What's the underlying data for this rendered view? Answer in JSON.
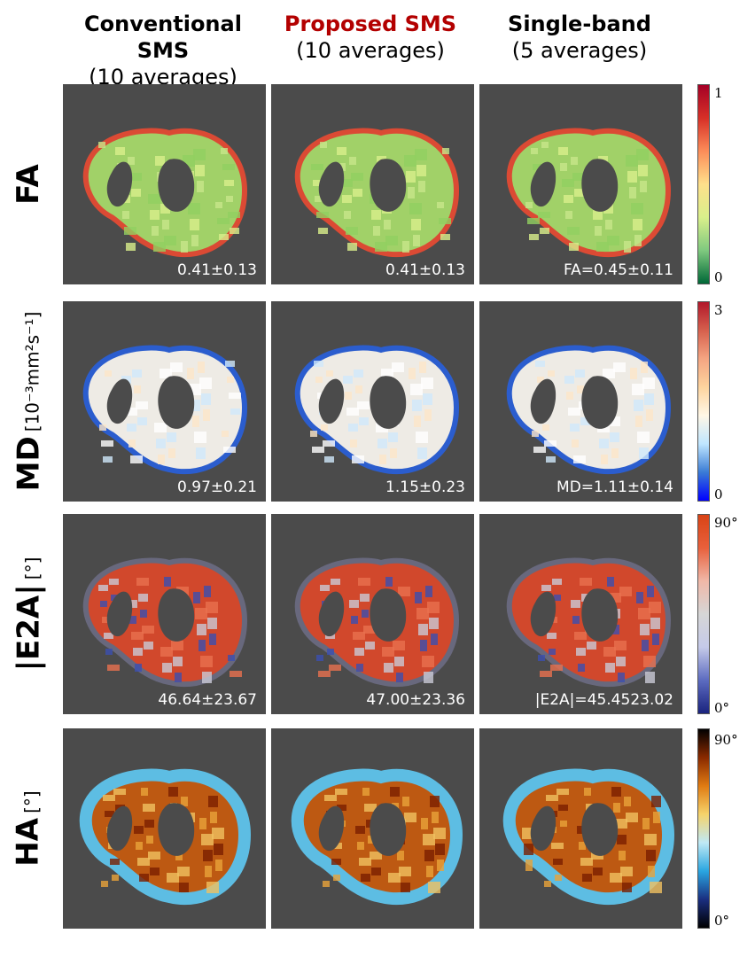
{
  "columns": [
    {
      "title": "Conventional SMS",
      "subtitle": "(10 averages)",
      "title_color": "#000000"
    },
    {
      "title": "Proposed SMS",
      "subtitle": "(10 averages)",
      "title_color": "#b30000"
    },
    {
      "title": "Single-band",
      "subtitle": "(5 averages)",
      "title_color": "#000000"
    }
  ],
  "rows": [
    {
      "label": "FA",
      "unit": "",
      "stats": [
        "0.41±0.13",
        "0.41±0.13",
        "FA=0.45±0.11"
      ],
      "colorbar": {
        "max": "1",
        "min": "0",
        "colors": [
          "#006837",
          "#7fc97f",
          "#d9ef8b",
          "#fee08b",
          "#fc8d59",
          "#d73027",
          "#a50026"
        ]
      },
      "heart_colors": [
        "#a6d96a",
        "#c8e68a",
        "#d9ef8b",
        "#91cf60"
      ],
      "rim_color": "#e34a33"
    },
    {
      "label": "MD",
      "unit": "[10⁻³mm²s⁻¹]",
      "stats": [
        "0.97±0.21",
        "1.15±0.23",
        "MD=1.11±0.14"
      ],
      "colorbar": {
        "max": "3",
        "min": "0",
        "colors": [
          "#0000ff",
          "#3a7bd5",
          "#bfe6ff",
          "#fff7e6",
          "#fdd49e",
          "#f4a582",
          "#d6604d",
          "#b2182b"
        ]
      },
      "heart_colors": [
        "#f7f4ee",
        "#fde6c8",
        "#cfe8fb",
        "#ffffff"
      ],
      "rim_color": "#2a5fd6"
    },
    {
      "label": "|E2A|",
      "unit": "[°]",
      "stats": [
        "46.64±23.67",
        "47.00±23.36",
        "|E2A|=45.4523.02"
      ],
      "colorbar": {
        "max": "90°",
        "min": "0°",
        "colors": [
          "#1a237e",
          "#5c6bc0",
          "#c5cae9",
          "#d6d6d6",
          "#f0b8a8",
          "#e8603c",
          "#d84315"
        ]
      },
      "heart_colors": [
        "#d9482b",
        "#3b4fb0",
        "#c9c9d6",
        "#e8704f"
      ],
      "rim_color": "#6a6a80"
    },
    {
      "label": "HA",
      "unit": "[°]",
      "stats": [
        "",
        "",
        ""
      ],
      "colorbar": {
        "max": "90°",
        "min": "0°",
        "colors": [
          "#000000",
          "#1a2f80",
          "#2aa6e0",
          "#bfe9f5",
          "#f5d36b",
          "#e07b12",
          "#8a2a00",
          "#000000"
        ]
      },
      "heart_colors": [
        "#c45a10",
        "#e8a23a",
        "#7a1e00",
        "#f0c060"
      ],
      "rim_color": "#5fc4ec"
    }
  ]
}
